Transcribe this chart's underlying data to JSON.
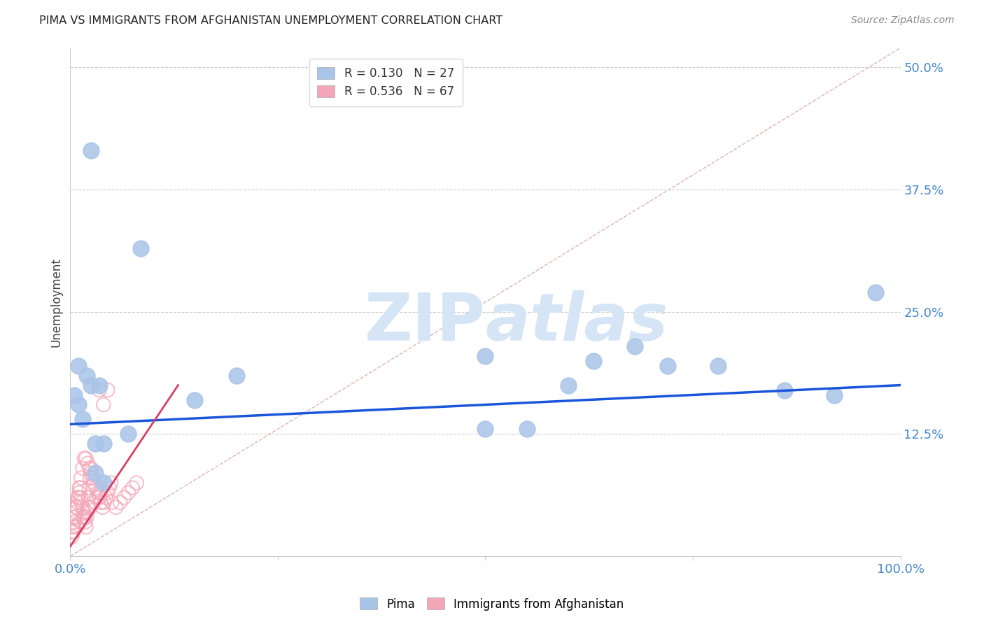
{
  "title": "PIMA VS IMMIGRANTS FROM AFGHANISTAN UNEMPLOYMENT CORRELATION CHART",
  "source": "Source: ZipAtlas.com",
  "ylabel_label": "Unemployment",
  "xlim": [
    0,
    1.0
  ],
  "ylim": [
    0,
    0.52
  ],
  "blue_R": "0.130",
  "blue_N": "27",
  "pink_R": "0.536",
  "pink_N": "67",
  "blue_color": "#aac4e8",
  "pink_color": "#f4a7b9",
  "blue_line_color": "#1a56db",
  "pink_line_color": "#d94060",
  "diagonal_color": "#e0b0b8",
  "grid_color": "#cccccc",
  "tick_label_color": "#4488cc",
  "blue_scatter_x": [
    0.025,
    0.085,
    0.2,
    0.01,
    0.02,
    0.025,
    0.035,
    0.005,
    0.01,
    0.015,
    0.03,
    0.5,
    0.6,
    0.68,
    0.72,
    0.78,
    0.86,
    0.92,
    0.97,
    0.55,
    0.63,
    0.5,
    0.15,
    0.07,
    0.04,
    0.03,
    0.04
  ],
  "blue_scatter_y": [
    0.415,
    0.315,
    0.185,
    0.195,
    0.185,
    0.175,
    0.175,
    0.165,
    0.155,
    0.14,
    0.085,
    0.205,
    0.175,
    0.215,
    0.195,
    0.195,
    0.17,
    0.165,
    0.27,
    0.13,
    0.2,
    0.13,
    0.16,
    0.125,
    0.115,
    0.115,
    0.075
  ],
  "pink_scatter_x": [
    0.002,
    0.003,
    0.004,
    0.005,
    0.006,
    0.007,
    0.008,
    0.009,
    0.01,
    0.011,
    0.012,
    0.013,
    0.014,
    0.015,
    0.016,
    0.017,
    0.018,
    0.019,
    0.02,
    0.021,
    0.022,
    0.023,
    0.024,
    0.025,
    0.003,
    0.005,
    0.007,
    0.009,
    0.011,
    0.013,
    0.015,
    0.017,
    0.019,
    0.021,
    0.023,
    0.025,
    0.027,
    0.029,
    0.031,
    0.033,
    0.035,
    0.037,
    0.039,
    0.041,
    0.043,
    0.045,
    0.047,
    0.049,
    0.035,
    0.04,
    0.045,
    0.05,
    0.055,
    0.06,
    0.065,
    0.07,
    0.075,
    0.08,
    0.004,
    0.008,
    0.012,
    0.016,
    0.02,
    0.024,
    0.028,
    0.032,
    0.036
  ],
  "pink_scatter_y": [
    0.02,
    0.025,
    0.03,
    0.035,
    0.04,
    0.045,
    0.05,
    0.055,
    0.06,
    0.065,
    0.07,
    0.06,
    0.055,
    0.05,
    0.045,
    0.04,
    0.035,
    0.03,
    0.04,
    0.05,
    0.06,
    0.07,
    0.08,
    0.09,
    0.03,
    0.04,
    0.05,
    0.06,
    0.07,
    0.08,
    0.09,
    0.1,
    0.1,
    0.095,
    0.09,
    0.085,
    0.08,
    0.075,
    0.07,
    0.065,
    0.06,
    0.055,
    0.05,
    0.055,
    0.06,
    0.065,
    0.07,
    0.075,
    0.17,
    0.155,
    0.17,
    0.055,
    0.05,
    0.055,
    0.06,
    0.065,
    0.07,
    0.075,
    0.025,
    0.03,
    0.035,
    0.04,
    0.045,
    0.05,
    0.055,
    0.06,
    0.065
  ],
  "blue_line_x0": 0.0,
  "blue_line_x1": 1.0,
  "blue_line_y0": 0.135,
  "blue_line_y1": 0.175,
  "pink_line_x0": 0.0,
  "pink_line_x1": 0.13,
  "pink_line_y0": 0.01,
  "pink_line_y1": 0.175,
  "watermark_zip": "ZIP",
  "watermark_atlas": "atlas",
  "watermark_color": "#d5e5f5",
  "watermark_fontsize": 68
}
